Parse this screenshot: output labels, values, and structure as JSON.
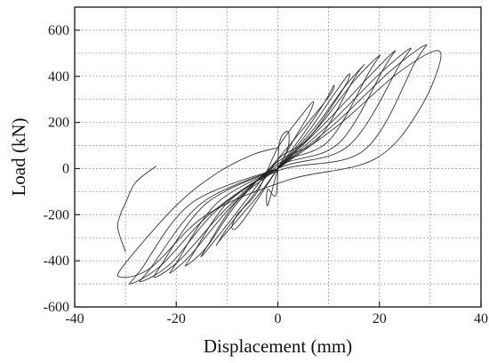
{
  "chart_data": {
    "type": "line",
    "title": "",
    "xlabel": "Displacement (mm)",
    "ylabel": "Load (kN)",
    "xlim": [
      -40,
      40
    ],
    "ylim": [
      -600,
      700
    ],
    "xticks": [
      -40,
      -20,
      0,
      20,
      40
    ],
    "xtick_labels": [
      "-40",
      "-20",
      "0",
      "20",
      "40"
    ],
    "yticks": [
      -600,
      -400,
      -200,
      0,
      200,
      400,
      600
    ],
    "ytick_labels": [
      "-600",
      "-400",
      "-200",
      "0",
      "200",
      "400",
      "600"
    ],
    "x_grid_step": 10,
    "y_grid_step": 100,
    "grid": true,
    "legend": "none",
    "series": [
      {
        "x": [
          0,
          2,
          2,
          0.3,
          -0.3,
          -2,
          -2,
          0
        ],
        "y": [
          0,
          90,
          160,
          110,
          -110,
          -90,
          -160,
          0
        ]
      },
      {
        "x": [
          0,
          3,
          6,
          7,
          5,
          0,
          -4,
          -8,
          -9,
          -7,
          0
        ],
        "y": [
          0,
          120,
          230,
          290,
          240,
          90,
          -100,
          -200,
          -260,
          -230,
          0
        ]
      },
      {
        "x": [
          0,
          5,
          9,
          11,
          10,
          3,
          0,
          -5,
          -10,
          -12,
          -11,
          -4,
          0
        ],
        "y": [
          0,
          150,
          280,
          360,
          310,
          120,
          40,
          -120,
          -260,
          -330,
          -300,
          -120,
          0
        ]
      },
      {
        "x": [
          0,
          6,
          11,
          14,
          13,
          6,
          0,
          -6,
          -12,
          -15,
          -14,
          -8,
          0
        ],
        "y": [
          0,
          160,
          320,
          410,
          350,
          130,
          40,
          -130,
          -300,
          -380,
          -340,
          -140,
          0
        ]
      },
      {
        "x": [
          0,
          7,
          13,
          17,
          15,
          8,
          0,
          -8,
          -14,
          -18,
          -17,
          -10,
          0
        ],
        "y": [
          0,
          170,
          350,
          450,
          390,
          130,
          30,
          -150,
          -340,
          -420,
          -380,
          -150,
          0
        ]
      },
      {
        "x": [
          0,
          8,
          15,
          20,
          18,
          10,
          0,
          -9,
          -17,
          -21,
          -20,
          -12,
          0
        ],
        "y": [
          0,
          180,
          380,
          490,
          420,
          120,
          20,
          -160,
          -370,
          -450,
          -410,
          -150,
          0
        ]
      },
      {
        "x": [
          0,
          9,
          18,
          23,
          21,
          12,
          0,
          -10,
          -19,
          -24,
          -23,
          -14,
          0
        ],
        "y": [
          0,
          190,
          400,
          510,
          440,
          110,
          10,
          -170,
          -390,
          -470,
          -420,
          -150,
          0
        ]
      },
      {
        "x": [
          0,
          10,
          20,
          26,
          24,
          14,
          0,
          -12,
          -21,
          -27,
          -25,
          -15,
          0
        ],
        "y": [
          0,
          190,
          410,
          520,
          450,
          100,
          0,
          -180,
          -410,
          -490,
          -430,
          -150,
          0
        ]
      },
      {
        "x": [
          0,
          11,
          22,
          29,
          27,
          17,
          0,
          -13,
          -23,
          -29,
          -27,
          -17,
          0
        ],
        "y": [
          0,
          190,
          420,
          535,
          460,
          80,
          -10,
          -190,
          -420,
          -500,
          -440,
          -150,
          0
        ]
      },
      {
        "x": [
          0,
          12,
          24,
          32,
          28,
          19,
          2,
          -14,
          -25,
          -31,
          -30,
          -20,
          -12,
          -5,
          0
        ],
        "y": [
          0,
          190,
          420,
          505,
          260,
          40,
          -50,
          -200,
          -430,
          -470,
          -410,
          -160,
          -20,
          60,
          90
        ]
      },
      {
        "x": [
          -24,
          -28,
          -30,
          -31,
          -31.5,
          -30
        ],
        "y": [
          10,
          -60,
          -150,
          -200,
          -260,
          -360
        ]
      }
    ]
  }
}
